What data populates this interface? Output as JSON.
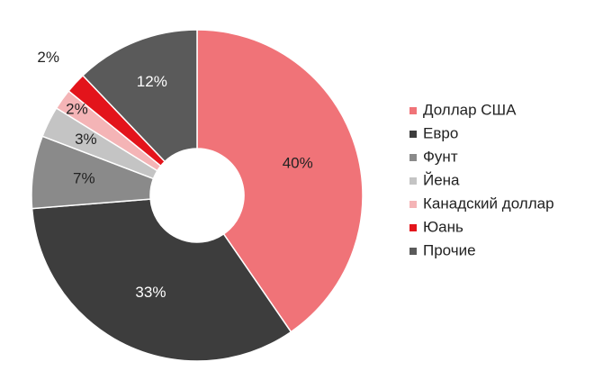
{
  "chart_data": {
    "type": "donut",
    "categories": [
      "Доллар США",
      "Евро",
      "Фунт",
      "Йена",
      "Канадский доллар",
      "Юань",
      "Прочие"
    ],
    "values": [
      40,
      33,
      7,
      3,
      2,
      2,
      12
    ],
    "value_labels": [
      "40%",
      "33%",
      "7%",
      "3%",
      "2%",
      "2%",
      "12%"
    ],
    "colors": [
      "#f07378",
      "#3d3d3d",
      "#8a8a8a",
      "#c4c4c4",
      "#f4b4b6",
      "#e3141b",
      "#5a5a5a"
    ],
    "legend": "right"
  }
}
